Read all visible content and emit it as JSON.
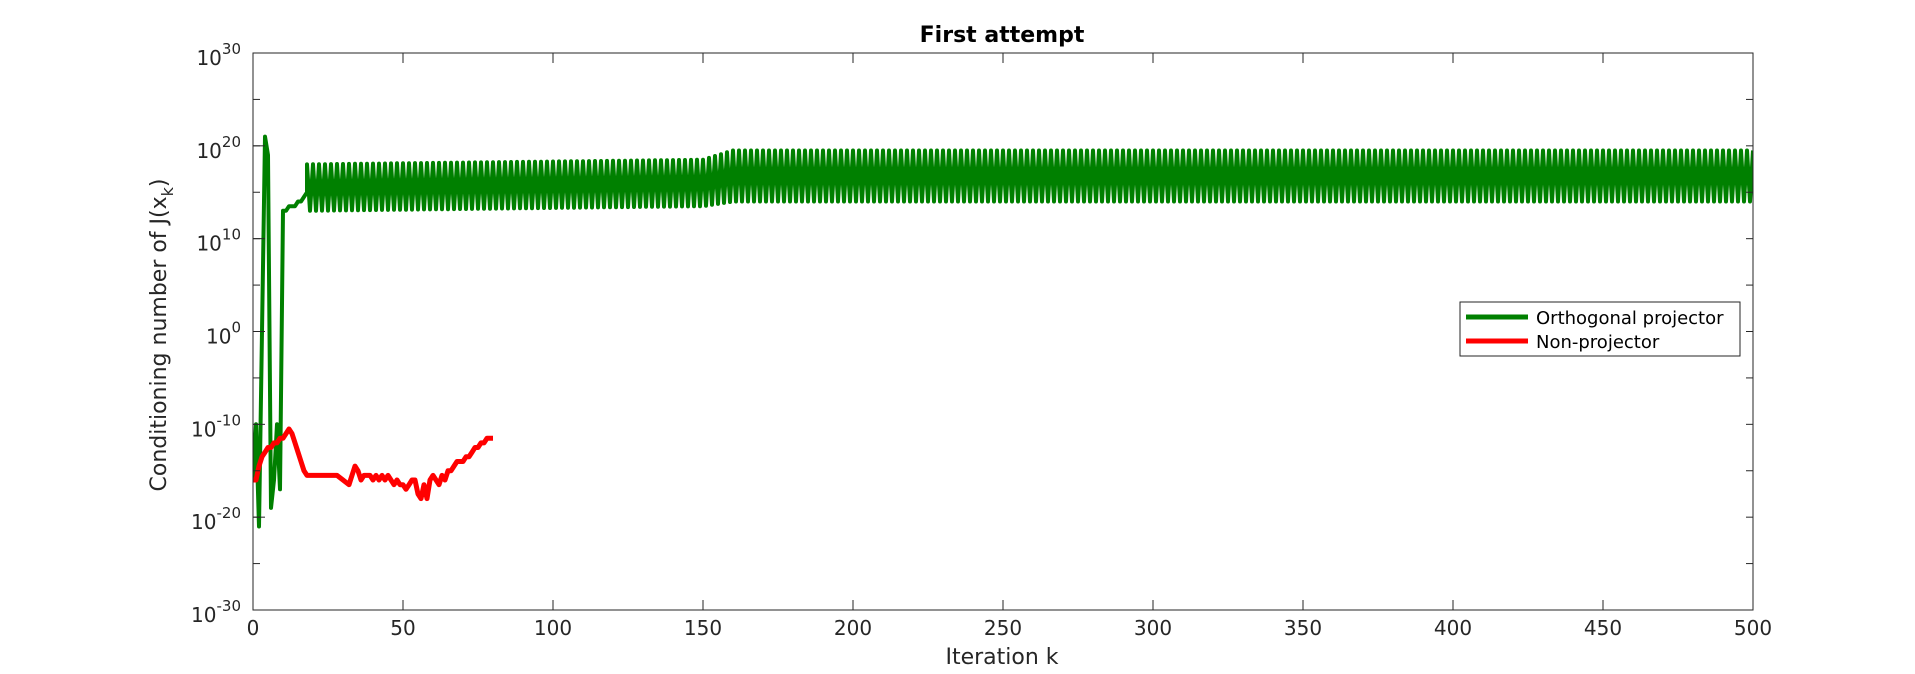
{
  "chart_data": {
    "type": "line",
    "title": "First attempt",
    "xlabel": "Iteration k",
    "ylabel": {
      "main": "Conditioning number of J(x",
      "subscript": "k",
      "close": ")"
    },
    "xlim": [
      0,
      500
    ],
    "ylim_log10": [
      -30,
      30
    ],
    "yscale": "log",
    "grid": false,
    "legend_position": "right, inside",
    "x_ticks": [
      "0",
      "50",
      "100",
      "150",
      "200",
      "250",
      "300",
      "350",
      "400",
      "450",
      "500"
    ],
    "y_ticks": [
      {
        "base": "10",
        "exp": "-30"
      },
      {
        "base": "10",
        "exp": "-20"
      },
      {
        "base": "10",
        "exp": "-10"
      },
      {
        "base": "10",
        "exp": "0"
      },
      {
        "base": "10",
        "exp": "10"
      },
      {
        "base": "10",
        "exp": "20"
      },
      {
        "base": "10",
        "exp": "30"
      }
    ],
    "series": [
      {
        "name": "Orthogonal projector",
        "color": "#008000",
        "value_encoding": "log10",
        "x": [
          0,
          1,
          2,
          3,
          4,
          5,
          6,
          7,
          8,
          9,
          10,
          11,
          12,
          13,
          14,
          15,
          16,
          17,
          18,
          19,
          20,
          40,
          60,
          80,
          100,
          120,
          140,
          150,
          160,
          185,
          200,
          250,
          300,
          350,
          400,
          450,
          500
        ],
        "y": [
          -16,
          -10,
          -21,
          0,
          21,
          19,
          -19,
          -16,
          -10,
          -17,
          13,
          13,
          13.5,
          13.5,
          13.5,
          14,
          14,
          14.5,
          15,
          15,
          15,
          15,
          15.5,
          15.5,
          16,
          16,
          16.5,
          17,
          17,
          17,
          17,
          17,
          17,
          17,
          17,
          17,
          17
        ],
        "oscillation_range": {
          "x": [
            18,
            150,
            160,
            500
          ],
          "high": [
            18,
            18.5,
            19.5,
            19.5
          ],
          "low": [
            13,
            13.5,
            14,
            14
          ]
        }
      },
      {
        "name": "Non-projector",
        "color": "#ff0000",
        "value_encoding": "log10",
        "x": [
          0,
          1,
          2,
          3,
          4,
          5,
          6,
          7,
          8,
          9,
          10,
          11,
          12,
          13,
          14,
          15,
          16,
          17,
          18,
          19,
          20,
          22,
          25,
          28,
          30,
          32,
          33,
          34,
          35,
          36,
          37,
          38,
          39,
          40,
          41,
          42,
          43,
          44,
          45,
          46,
          47,
          48,
          49,
          50,
          51,
          52,
          53,
          54,
          55,
          56,
          57,
          58,
          59,
          60,
          61,
          62,
          63,
          64,
          65,
          66,
          67,
          68,
          69,
          70,
          71,
          72,
          73,
          74,
          75,
          76,
          77,
          78,
          79,
          80
        ],
        "y": [
          -16,
          -16,
          -14.5,
          -13.5,
          -13,
          -12.5,
          -12.5,
          -12,
          -12,
          -11.5,
          -11.5,
          -11,
          -10.5,
          -11,
          -12,
          -13,
          -14,
          -15,
          -15.5,
          -15.5,
          -15.5,
          -15.5,
          -15.5,
          -15.5,
          -16,
          -16.5,
          -15.5,
          -14.5,
          -15,
          -16,
          -15.5,
          -15.5,
          -15.5,
          -16,
          -15.5,
          -16,
          -15.5,
          -16,
          -15.5,
          -16,
          -16.5,
          -16,
          -16.5,
          -16.5,
          -17,
          -16.5,
          -16,
          -16,
          -17.5,
          -18,
          -16.5,
          -18,
          -16,
          -15.5,
          -16,
          -16.5,
          -15.5,
          -16,
          -15,
          -15,
          -14.5,
          -14,
          -14,
          -14,
          -13.5,
          -13.5,
          -13,
          -12.5,
          -12.5,
          -12,
          -12,
          -11.5,
          -11.5,
          -11.5
        ]
      }
    ]
  }
}
